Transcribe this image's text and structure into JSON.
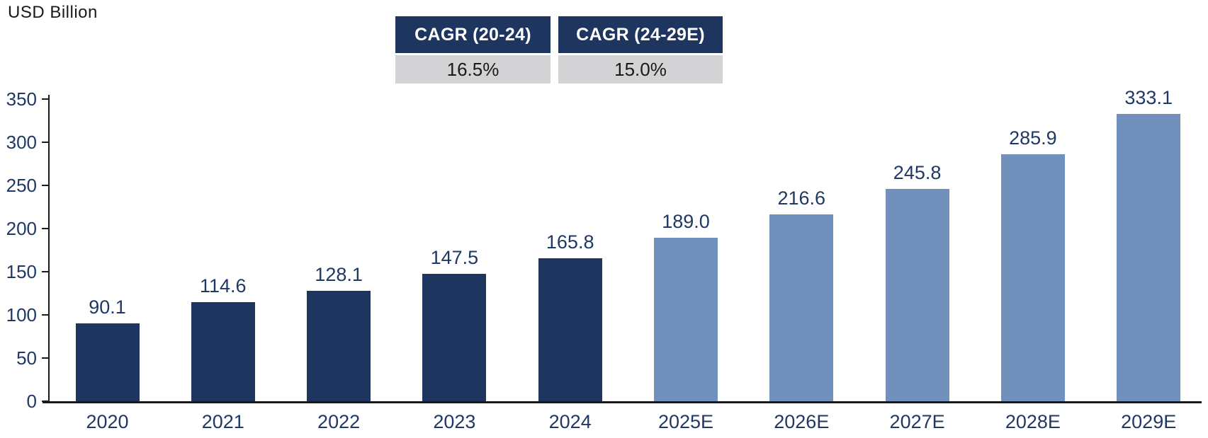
{
  "unit_label": "USD Billion",
  "cagr_table": {
    "columns": [
      {
        "header": "CAGR (20-24)",
        "value": "16.5%"
      },
      {
        "header": "CAGR (24-29E)",
        "value": "15.0%"
      }
    ]
  },
  "colors": {
    "historical_bar": "#1E3560",
    "estimate_bar": "#7290BC",
    "table_header_bg": "#1E3560",
    "table_header_text": "#FFFFFF",
    "table_value_bg": "#D3D3D6",
    "table_value_text": "#1A1A1A",
    "label_text": "#1F3864",
    "axis_line": "#1A1A1A"
  },
  "chart_data": {
    "type": "bar",
    "title": "USD Billion",
    "categories": [
      "2020",
      "2021",
      "2022",
      "2023",
      "2024",
      "2025E",
      "2026E",
      "2027E",
      "2028E",
      "2029E"
    ],
    "values": [
      90.1,
      114.6,
      128.1,
      147.5,
      165.8,
      189.0,
      216.6,
      245.8,
      285.9,
      333.1
    ],
    "estimate_start_index": 5,
    "xlabel": "",
    "ylabel": "USD Billion",
    "ylim": [
      0,
      350
    ],
    "yticks": [
      0,
      50,
      100,
      150,
      200,
      250,
      300,
      350
    ],
    "grid": false,
    "legend": "none",
    "value_labels": "above-bars",
    "annotations": [
      {
        "label": "CAGR (20-24)",
        "value": "16.5%"
      },
      {
        "label": "CAGR (24-29E)",
        "value": "15.0%"
      }
    ]
  }
}
